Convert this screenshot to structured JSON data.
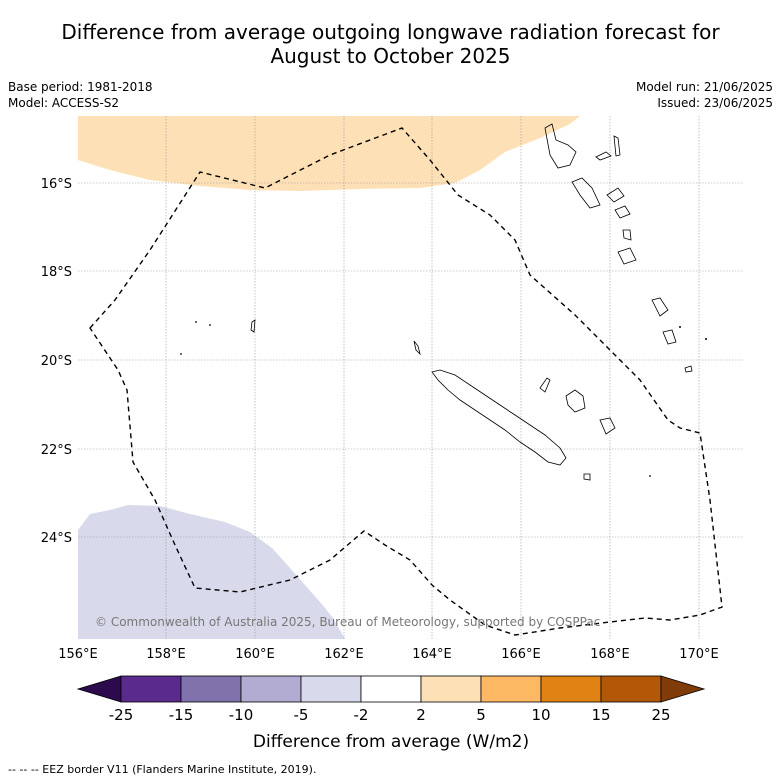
{
  "title_line1": "Difference from average outgoing longwave radiation forecast for",
  "title_line2": "August to October 2025",
  "base_period": "Base period: 1981-2018",
  "model": "Model: ACCESS-S2",
  "model_run": "Model run: 21/06/2025",
  "issued": "Issued: 23/06/2025",
  "copyright": "© Commonwealth of Australia 2025, Bureau of Meteorology, supported by COSPPac",
  "lat_labels": [
    "16°S",
    "18°S",
    "20°S",
    "22°S",
    "24°S"
  ],
  "lon_labels": [
    "156°E",
    "158°E",
    "160°E",
    "162°E",
    "164°E",
    "166°E",
    "168°E",
    "170°E"
  ],
  "colorbar": {
    "title": "Difference from average (W/m2)",
    "ticks": [
      "-25",
      "-15",
      "-10",
      "-5",
      "-2",
      "2",
      "5",
      "10",
      "15",
      "25"
    ],
    "colors": [
      "#2d0a4e",
      "#5a2a8c",
      "#8073ac",
      "#b2abd2",
      "#d8daeb",
      "#ffffff",
      "#fee0b6",
      "#fdb863",
      "#e08214",
      "#b35806",
      "#7f3b08"
    ]
  },
  "legend_footer": "-- -- -- EEZ border V11 (Flanders Marine Institute, 2019)."
}
